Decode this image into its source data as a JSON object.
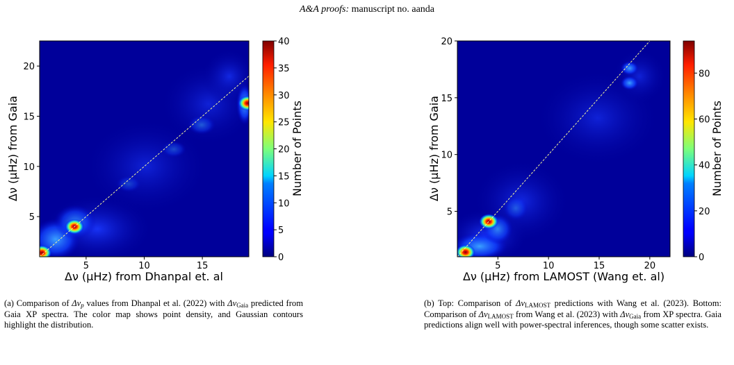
{
  "header": {
    "journal": "A&A proofs:",
    "manuscript": "manuscript no. aanda"
  },
  "chart_data": [
    {
      "type": "heatmap",
      "xlabel": "Δν (μHz) from Dhanpal et. al",
      "ylabel": "Δν (μHz) from Gaia",
      "colorbar_label": "Number of Points",
      "xlim": [
        1,
        19
      ],
      "ylim": [
        1,
        22.5
      ],
      "xticks": [
        5,
        10,
        15
      ],
      "yticks": [
        5,
        10,
        15,
        20
      ],
      "colorbar_range": [
        0,
        40
      ],
      "colorbar_ticks": [
        0,
        5,
        10,
        15,
        20,
        25,
        30,
        35,
        40
      ],
      "reference_line": "y = x",
      "hotspots": [
        {
          "x": 1.2,
          "y": 1.4,
          "level": 40
        },
        {
          "x": 4.0,
          "y": 4.0,
          "level": 33
        },
        {
          "x": 18.9,
          "y": 16.3,
          "level": 30
        }
      ]
    },
    {
      "type": "heatmap",
      "xlabel": "Δν (μHz) from LAMOST (Wang et. al)",
      "ylabel": "Δν (μHz) from Gaia",
      "colorbar_label": "Number of Points",
      "xlim": [
        1,
        22
      ],
      "ylim": [
        1,
        20
      ],
      "xticks": [
        5,
        10,
        15,
        20
      ],
      "yticks": [
        5,
        10,
        15,
        20
      ],
      "colorbar_range": [
        0,
        94
      ],
      "colorbar_ticks": [
        0,
        20,
        40,
        60,
        80
      ],
      "reference_line": "y = x",
      "hotspots": [
        {
          "x": 1.8,
          "y": 1.4,
          "level": 94
        },
        {
          "x": 4.1,
          "y": 4.1,
          "level": 90
        },
        {
          "x": 18.0,
          "y": 16.3,
          "level": 12
        },
        {
          "x": 18.0,
          "y": 17.6,
          "level": 10
        }
      ]
    }
  ],
  "captions": {
    "a": {
      "label": "(a)",
      "text1": "Comparison of ",
      "dnu_p": "Δν",
      "sub_p": "p",
      "text2": " values from Dhanpal et al. (2022) with ",
      "dnu_gaia": "Δν",
      "sub_gaia": "Gaia",
      "text3": " predicted from Gaia XP spectra. The color map shows point density, and Gaussian contours highlight the distribution."
    },
    "b": {
      "label": "(b)",
      "text1": "Top: Comparison of ",
      "dnu_1": "Δν",
      "sub_1": "LAMOST",
      "text2": " predictions with Wang et al. (2023). Bottom: Comparison of ",
      "dnu_2": "Δν",
      "sub_2": "LAMOST",
      "text3": " from Wang et al. (2023) with ",
      "dnu_3": "Δν",
      "sub_3": "Gaia",
      "text4": " from XP spectra. Gaia predictions align well with power-spectral inferences, though some scatter exists."
    }
  }
}
